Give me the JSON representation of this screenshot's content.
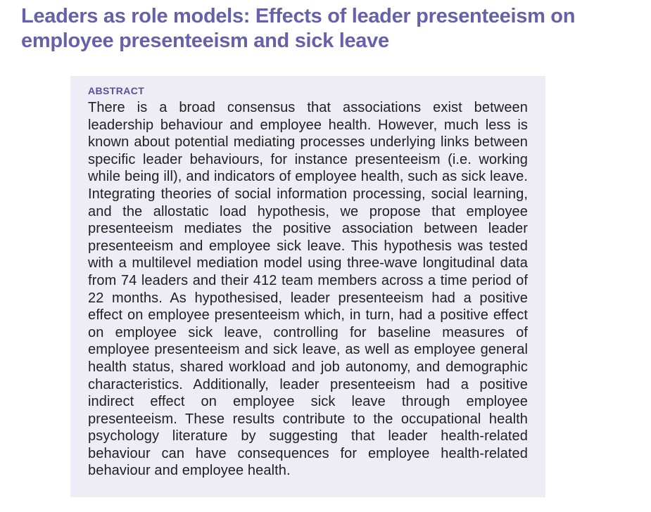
{
  "article": {
    "title": {
      "text": "Leaders as role models: Effects of leader presenteeism on employee presenteeism and sick leave",
      "lines": [
        "Leaders as role models: Effects of leader presenteeism on",
        "employee presenteeism and sick leave"
      ]
    },
    "abstract": {
      "label": "ABSTRACT",
      "body": "There is a broad consensus that associations exist between leadership behaviour and employee health. However, much less is known about potential mediating processes underlying links between specific leader behaviours, for instance presenteeism (i.e. working while being ill), and indicators of employee health, such as sick leave. Integrating theories of social information processing, social learning, and the allostatic load hypothesis, we propose that employee presenteeism mediates the positive association between leader presenteeism and employee sick leave. This hypothesis was tested with a multilevel mediation model using three-wave longitudinal data from 74 leaders and their 412 team members across a time period of 22 months. As hypothesised, leader presenteeism had a positive effect on employee presenteeism which, in turn, had a positive effect on employee sick leave, controlling for baseline measures of employee presenteeism and sick leave, as well as employee general health status, shared workload and job autonomy, and demographic characteristics. Additionally, leader presenteeism had a positive indirect effect on employee sick leave through employee presenteeism. These results contribute to the occupational health psychology literature by suggesting that leader health-related behaviour can have consequences for employee health-related behaviour and employee health."
    }
  },
  "colors": {
    "title_text": "#6661a8",
    "abstract_label_text": "#56519b",
    "abstract_background": "#eeedf6",
    "body_text": "#1f1f1f",
    "page_background": "#ffffff"
  }
}
